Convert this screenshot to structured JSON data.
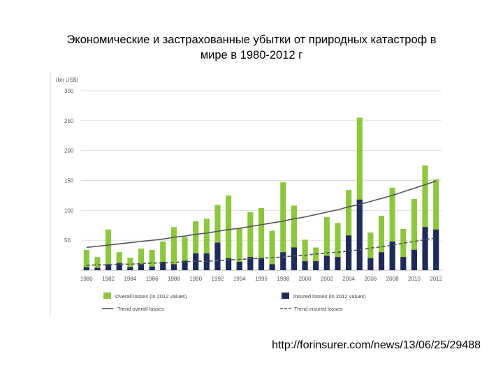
{
  "slide": {
    "title_line1": "Экономические и застрахованные убытки от природных катастроф в",
    "title_line2": "мире в 1980-2012 г",
    "caption": "http://forinsurer.com/news/13/06/25/29488"
  },
  "colors": {
    "overall": "#8dc63f",
    "insured": "#1f2a5c",
    "trend": "#555555",
    "grid": "#d0d0d0"
  },
  "chart_data": {
    "type": "bar",
    "subtype": "overlapping-with-trend-lines",
    "ylabel": "(bn US$)",
    "ylim": [
      0,
      300
    ],
    "yticks": [
      50,
      100,
      150,
      200,
      250,
      300
    ],
    "xtick_labels": [
      "1980",
      "1982",
      "1984",
      "1986",
      "1988",
      "1990",
      "1992",
      "1994",
      "1996",
      "1998",
      "2000",
      "2002",
      "2004",
      "2006",
      "2008",
      "2010",
      "2012"
    ],
    "categories": [
      1980,
      1981,
      1982,
      1983,
      1984,
      1985,
      1986,
      1987,
      1988,
      1989,
      1990,
      1991,
      1992,
      1993,
      1994,
      1995,
      1996,
      1997,
      1998,
      1999,
      2000,
      2001,
      2002,
      2003,
      2004,
      2005,
      2006,
      2007,
      2008,
      2009,
      2010,
      2011,
      2012
    ],
    "series": [
      {
        "name": "Overall losses (in 2012 values)",
        "type": "bar",
        "values": [
          34,
          22,
          68,
          30,
          21,
          36,
          34,
          48,
          72,
          55,
          82,
          86,
          109,
          125,
          70,
          97,
          104,
          66,
          147,
          108,
          51,
          38,
          89,
          79,
          134,
          255,
          63,
          91,
          138,
          69,
          119,
          175,
          152
        ]
      },
      {
        "name": "Insured losses (in 2012 values)",
        "type": "bar",
        "values": [
          5,
          4,
          10,
          12,
          5,
          10,
          6,
          14,
          10,
          16,
          28,
          28,
          46,
          20,
          14,
          22,
          20,
          10,
          30,
          38,
          15,
          15,
          24,
          22,
          58,
          118,
          20,
          30,
          48,
          22,
          34,
          72,
          68
        ]
      },
      {
        "name": "Trend overall losses",
        "type": "line",
        "style": "solid",
        "values": [
          38,
          40,
          42,
          44,
          46,
          48,
          50,
          52,
          55,
          57,
          60,
          62,
          65,
          68,
          70,
          73,
          76,
          79,
          82,
          86,
          89,
          93,
          97,
          101,
          106,
          110,
          115,
          120,
          125,
          131,
          137,
          143,
          149
        ]
      },
      {
        "name": "Trend insured losses",
        "type": "line",
        "style": "dashed",
        "values": [
          8,
          9,
          9,
          10,
          10,
          11,
          12,
          12,
          13,
          14,
          15,
          15,
          16,
          17,
          18,
          19,
          20,
          21,
          22,
          24,
          25,
          27,
          29,
          30,
          32,
          34,
          37,
          39,
          42,
          45,
          48,
          51,
          54
        ]
      }
    ],
    "grid": true,
    "legend_position": "bottom"
  }
}
